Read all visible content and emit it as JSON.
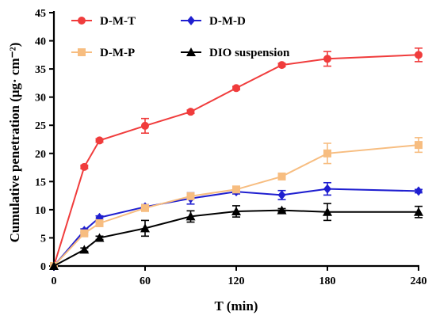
{
  "chart_data": {
    "type": "line",
    "xlabel": "T (min)",
    "ylabel": "Cumulative penetration (μg· cm⁻²)",
    "xlim": [
      0,
      240
    ],
    "ylim": [
      0,
      45
    ],
    "x_ticks": [
      0,
      60,
      120,
      180,
      240
    ],
    "y_ticks": [
      0,
      5,
      10,
      15,
      20,
      25,
      30,
      35,
      40,
      45
    ],
    "grid": false,
    "legend_position": "top-left",
    "series": [
      {
        "name": "D-M-T",
        "color": "#f03c3c",
        "marker": "circle",
        "x": [
          0,
          20,
          30,
          60,
          90,
          120,
          150,
          180,
          240
        ],
        "y": [
          0,
          17.6,
          22.3,
          24.9,
          27.4,
          31.6,
          35.7,
          36.8,
          37.5
        ],
        "err": [
          0,
          0.3,
          0.3,
          1.3,
          0.3,
          0.3,
          0.3,
          1.3,
          1.2
        ]
      },
      {
        "name": "D-M-D",
        "color": "#1f1fd0",
        "marker": "diamond",
        "x": [
          0,
          20,
          30,
          60,
          90,
          120,
          150,
          180,
          240
        ],
        "y": [
          0,
          6.3,
          8.6,
          10.5,
          12.0,
          13.2,
          12.6,
          13.7,
          13.3
        ],
        "err": [
          0,
          0.3,
          0.3,
          0.4,
          1.0,
          0.4,
          0.8,
          1.1,
          0.3
        ]
      },
      {
        "name": "D-M-P",
        "color": "#f7bd80",
        "marker": "square",
        "x": [
          0,
          20,
          30,
          60,
          90,
          120,
          150,
          180,
          240
        ],
        "y": [
          0,
          5.8,
          7.6,
          10.3,
          12.4,
          13.6,
          15.9,
          20.0,
          21.5
        ],
        "err": [
          0,
          0.3,
          0.3,
          0.3,
          0.5,
          0.3,
          0.3,
          1.8,
          1.3
        ]
      },
      {
        "name": "DIO suspension",
        "color": "#000000",
        "marker": "triangle",
        "x": [
          0,
          20,
          30,
          60,
          90,
          120,
          150,
          180,
          240
        ],
        "y": [
          0,
          2.9,
          5.0,
          6.7,
          8.8,
          9.7,
          9.9,
          9.6,
          9.6
        ],
        "err": [
          0,
          0.3,
          0.3,
          1.4,
          1.0,
          1.0,
          0.3,
          1.5,
          1.0
        ]
      }
    ]
  }
}
